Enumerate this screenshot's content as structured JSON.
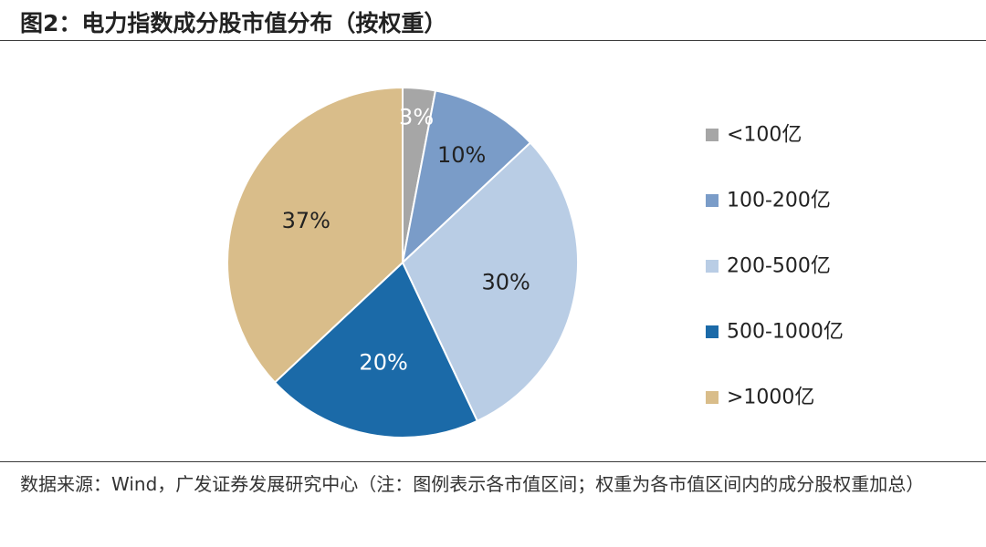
{
  "figure": {
    "title": "图2：电力指数成分股市值分布（按权重）",
    "source": "数据来源：Wind，广发证券发展研究中心（注：图例表示各市值区间；权重为各市值区间内的成分股权重加总）"
  },
  "chart_data": {
    "type": "pie",
    "title": "",
    "categories": [
      "<100亿",
      "100-200亿",
      "200-500亿",
      "500-1000亿",
      ">1000亿"
    ],
    "values": [
      3,
      10,
      30,
      20,
      37
    ],
    "labels": [
      "3%",
      "10%",
      "30%",
      "20%",
      "37%"
    ],
    "colors": [
      "#a6a6a6",
      "#7a9cc8",
      "#b9cde5",
      "#1b6aa8",
      "#d9bd8a"
    ],
    "label_colors": [
      "#ffffff",
      "#222222",
      "#222222",
      "#ffffff",
      "#222222"
    ],
    "start_angle_deg": 0,
    "direction": "clockwise",
    "legend_position": "right"
  }
}
